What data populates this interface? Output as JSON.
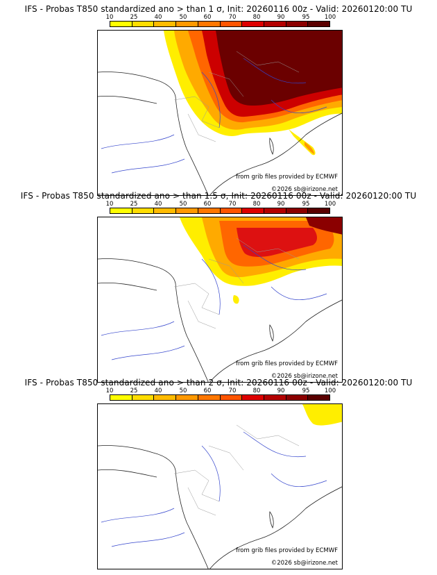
{
  "colorbar": {
    "labels": [
      "10",
      "25",
      "40",
      "50",
      "60",
      "70",
      "80",
      "90",
      "95",
      "100"
    ],
    "colors": [
      "#ffff00",
      "#ffdd00",
      "#ffbb00",
      "#ff9900",
      "#ff7700",
      "#ff5500",
      "#dd0000",
      "#b30000",
      "#8b0000",
      "#5a0000"
    ]
  },
  "panels": [
    {
      "title": "IFS - Probas T850  standardized ano > than 1 σ, Init: 20260116 00z - Valid: 20260120:00 TU",
      "source_credit": "from grib files provided by ECMWF",
      "copyright": "©2026 sb@irizone.net"
    },
    {
      "title": "IFS - Probas T850  standardized ano > than 1.5 σ, Init: 20260116 00z - Valid: 20260120:00 TU",
      "source_credit": "from grib files provided by ECMWF",
      "copyright": "©2026 sb@irizone.net"
    },
    {
      "title": "IFS - Probas T850  standardized ano > than 2 σ, Init: 20260116 00z - Valid: 20260120:00 TU",
      "source_credit": "from grib files provided by ECMWF",
      "copyright": "©2026 sb@irizone.net"
    }
  ]
}
